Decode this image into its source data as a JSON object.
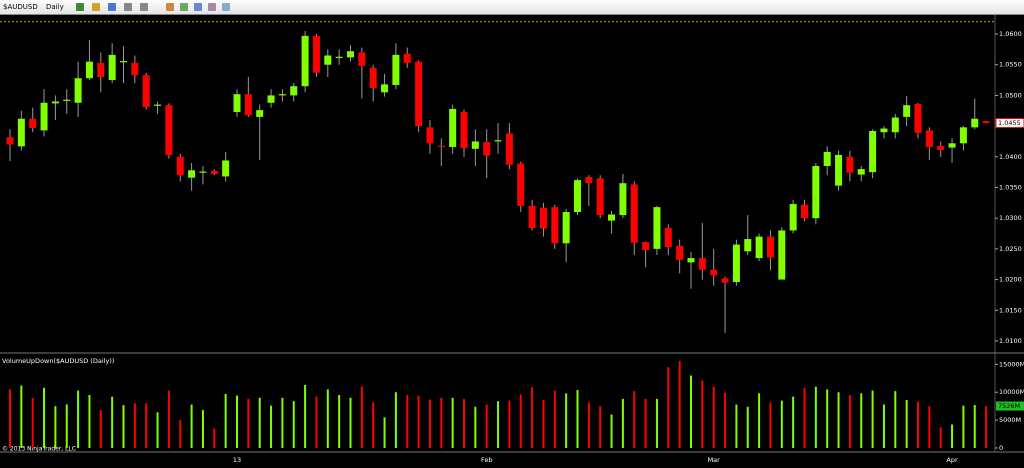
{
  "toolbar": {
    "symbol": "$AUDUSD",
    "interval": "Daily"
  },
  "copyright": "© 2013 NinjaTrader, LLC",
  "chart_data": [
    {
      "type": "candlestick",
      "categories": [
        null,
        null,
        null,
        null,
        null,
        null,
        null,
        null,
        null,
        null,
        null,
        null,
        null,
        null,
        null,
        null,
        null,
        null,
        null,
        null,
        "13",
        null,
        null,
        null,
        null,
        null,
        null,
        null,
        null,
        null,
        null,
        null,
        null,
        null,
        null,
        null,
        null,
        null,
        null,
        null,
        null,
        null,
        "Feb",
        null,
        null,
        null,
        null,
        null,
        null,
        null,
        null,
        null,
        null,
        null,
        null,
        null,
        null,
        null,
        null,
        null,
        null,
        null,
        "Mar",
        null,
        null,
        null,
        null,
        null,
        null,
        null,
        null,
        null,
        null,
        null,
        null,
        null,
        null,
        null,
        null,
        null,
        null,
        null,
        null,
        "Apr",
        null,
        null,
        null
      ],
      "open": [
        1.0432,
        1.0417,
        1.0462,
        1.0443,
        1.0487,
        1.0491,
        1.0488,
        1.0528,
        1.0553,
        1.0525,
        1.0555,
        1.0553,
        1.0533,
        1.0484,
        1.0484,
        1.04,
        1.0366,
        1.0375,
        1.0377,
        1.0368,
        1.0473,
        1.0502,
        1.0465,
        1.0488,
        1.05,
        1.05,
        1.0515,
        1.0597,
        1.055,
        1.0562,
        1.0562,
        1.057,
        1.0545,
        1.0505,
        1.0517,
        1.0568,
        1.0555,
        1.0448,
        1.0418,
        1.0416,
        1.0473,
        1.0413,
        1.0424,
        1.0426,
        1.0438,
        1.0389,
        1.032,
        1.0317,
        1.0318,
        1.0259,
        1.031,
        1.0367,
        1.0365,
        1.0296,
        1.0305,
        1.0355,
        1.0261,
        1.025,
        1.0284,
        1.0255,
        1.0228,
        1.0235,
        1.0216,
        1.0202,
        1.0196,
        1.0246,
        1.0235,
        1.027,
        1.02,
        1.028,
        1.0322,
        1.03,
        1.0385,
        1.0353,
        1.04,
        1.0371,
        1.0375,
        1.044,
        1.044,
        1.0465,
        1.0486,
        1.0443,
        1.0418,
        1.0415,
        1.0422,
        1.0448,
        1.0458
      ],
      "high": [
        1.0445,
        1.0475,
        1.048,
        1.051,
        1.05,
        1.051,
        1.0555,
        1.059,
        1.057,
        1.0585,
        1.058,
        1.0565,
        1.0537,
        1.049,
        1.0487,
        1.0405,
        1.039,
        1.0385,
        1.038,
        1.0408,
        1.051,
        1.053,
        1.0485,
        1.051,
        1.051,
        1.052,
        1.0605,
        1.06,
        1.0575,
        1.0575,
        1.0582,
        1.0578,
        1.055,
        1.0535,
        1.0585,
        1.0578,
        1.0557,
        1.046,
        1.043,
        1.0485,
        1.0477,
        1.0445,
        1.0445,
        1.0455,
        1.0455,
        1.0392,
        1.033,
        1.0325,
        1.0322,
        1.0315,
        1.0365,
        1.037,
        1.037,
        1.0312,
        1.0372,
        1.036,
        1.0262,
        1.032,
        1.029,
        1.0265,
        1.0245,
        1.0292,
        1.025,
        1.0205,
        1.0265,
        1.0305,
        1.0275,
        1.028,
        1.0285,
        1.033,
        1.033,
        1.039,
        1.0417,
        1.041,
        1.041,
        1.0385,
        1.0445,
        1.045,
        1.047,
        1.0499,
        1.0488,
        1.0448,
        1.0425,
        1.043,
        1.045,
        1.0495,
        1.0458
      ],
      "low": [
        1.0393,
        1.041,
        1.044,
        1.0433,
        1.046,
        1.047,
        1.0465,
        1.0525,
        1.0505,
        1.052,
        1.052,
        1.052,
        1.0477,
        1.047,
        1.0397,
        1.036,
        1.0345,
        1.0355,
        1.037,
        1.036,
        1.0465,
        1.0465,
        1.0395,
        1.048,
        1.049,
        1.049,
        1.0505,
        1.053,
        1.053,
        1.055,
        1.0555,
        1.0495,
        1.049,
        1.0498,
        1.051,
        1.0545,
        1.044,
        1.0405,
        1.0385,
        1.0405,
        1.04,
        1.0385,
        1.0365,
        1.0405,
        1.038,
        1.031,
        1.028,
        1.027,
        1.025,
        1.0228,
        1.0305,
        1.032,
        1.03,
        1.0275,
        1.03,
        1.024,
        1.022,
        1.024,
        1.024,
        1.021,
        1.0185,
        1.02,
        1.019,
        1.0113,
        1.019,
        1.024,
        1.023,
        1.0215,
        1.02,
        1.0275,
        1.0295,
        1.029,
        1.037,
        1.0345,
        1.036,
        1.036,
        1.0365,
        1.043,
        1.043,
        1.045,
        1.043,
        1.0395,
        1.04,
        1.039,
        1.041,
        1.0445,
        1.0455
      ],
      "close": [
        1.042,
        1.0462,
        1.0447,
        1.0488,
        1.049,
        1.0493,
        1.0528,
        1.0555,
        1.053,
        1.0566,
        1.0556,
        1.0533,
        1.0481,
        1.0485,
        1.0403,
        1.037,
        1.0378,
        1.0376,
        1.0372,
        1.0394,
        1.0502,
        1.0468,
        1.0476,
        1.05,
        1.0502,
        1.0515,
        1.0597,
        1.0537,
        1.0565,
        1.0563,
        1.0572,
        1.0548,
        1.0512,
        1.0518,
        1.0566,
        1.0553,
        1.045,
        1.0422,
        1.0417,
        1.0478,
        1.0414,
        1.0425,
        1.0402,
        1.0427,
        1.0387,
        1.032,
        1.0284,
        1.0283,
        1.0259,
        1.031,
        1.0362,
        1.0357,
        1.0305,
        1.0306,
        1.0357,
        1.026,
        1.0248,
        1.0318,
        1.0253,
        1.0232,
        1.0235,
        1.0216,
        1.0207,
        1.0195,
        1.0257,
        1.0266,
        1.027,
        1.0236,
        1.028,
        1.0323,
        1.03,
        1.0385,
        1.0408,
        1.0403,
        1.0374,
        1.038,
        1.0442,
        1.0446,
        1.0464,
        1.0484,
        1.0439,
        1.0416,
        1.0411,
        1.0422,
        1.0448,
        1.0462,
        1.0455
      ],
      "up_color": "#80ff00",
      "down_color": "#ff0000",
      "ylim": [
        1.0082,
        1.0631
      ],
      "yticks": [
        {
          "value": 1.06,
          "label": "1.0600"
        },
        {
          "value": 1.055,
          "label": "1.0550"
        },
        {
          "value": 1.05,
          "label": "1.0500"
        },
        {
          "value": 1.04,
          "label": "1.0400"
        },
        {
          "value": 1.035,
          "label": "1.0350"
        },
        {
          "value": 1.03,
          "label": "1.0300"
        },
        {
          "value": 1.025,
          "label": "1.0250"
        },
        {
          "value": 1.02,
          "label": "1.0200"
        },
        {
          "value": 1.015,
          "label": "1.0150"
        },
        {
          "value": 1.01,
          "label": "1.0100"
        }
      ],
      "hline": 1.062,
      "hline_color": "#e0a000"
    },
    {
      "type": "bar",
      "title": "VolumeUpDown($AUDUSD (Daily))",
      "values": [
        10500,
        11200,
        9000,
        10800,
        7500,
        7800,
        10300,
        9500,
        6800,
        9200,
        7700,
        8000,
        8000,
        6400,
        10300,
        5000,
        7800,
        6800,
        3500,
        9700,
        9400,
        8800,
        9000,
        7600,
        9000,
        8400,
        11300,
        9200,
        10500,
        9500,
        9000,
        11000,
        8200,
        5500,
        10000,
        9500,
        9400,
        8700,
        9000,
        9000,
        8800,
        7400,
        7800,
        8400,
        8500,
        9600,
        10900,
        8600,
        10300,
        9800,
        10400,
        8200,
        7500,
        6000,
        8800,
        10200,
        8800,
        8800,
        14500,
        15600,
        13000,
        12100,
        11000,
        9900,
        7800,
        7400,
        9800,
        8200,
        8500,
        9200,
        10800,
        11000,
        10500,
        10000,
        9500,
        9800,
        10300,
        7800,
        10200,
        8600,
        8300,
        7500,
        3700,
        4200,
        7600,
        7700,
        7526
      ],
      "value_labels": [
        null,
        null,
        null,
        null,
        null,
        null,
        null,
        null,
        null,
        null,
        null,
        null,
        null,
        null,
        null,
        null,
        null,
        null,
        null,
        null,
        null,
        null,
        null,
        null,
        null,
        null,
        null,
        null,
        null,
        null,
        null,
        null,
        null,
        null,
        null,
        null,
        null,
        null,
        null,
        null,
        null,
        null,
        null,
        null,
        null,
        null,
        null,
        null,
        null,
        null,
        null,
        null,
        null,
        null,
        null,
        null,
        null,
        null,
        null,
        null,
        null,
        null,
        null,
        null,
        null,
        null,
        null,
        null,
        null,
        null,
        null,
        null,
        null,
        null,
        null,
        null,
        null,
        null,
        null,
        null,
        null,
        null,
        null,
        null,
        null,
        null,
        "7526M"
      ],
      "ylim": [
        0,
        16500
      ],
      "yticks": [
        0,
        {
          "value": 5000,
          "label": "5000M"
        },
        {
          "value": 10000,
          "label": "10000M"
        },
        {
          "value": 15000,
          "label": "15000M"
        }
      ]
    }
  ]
}
